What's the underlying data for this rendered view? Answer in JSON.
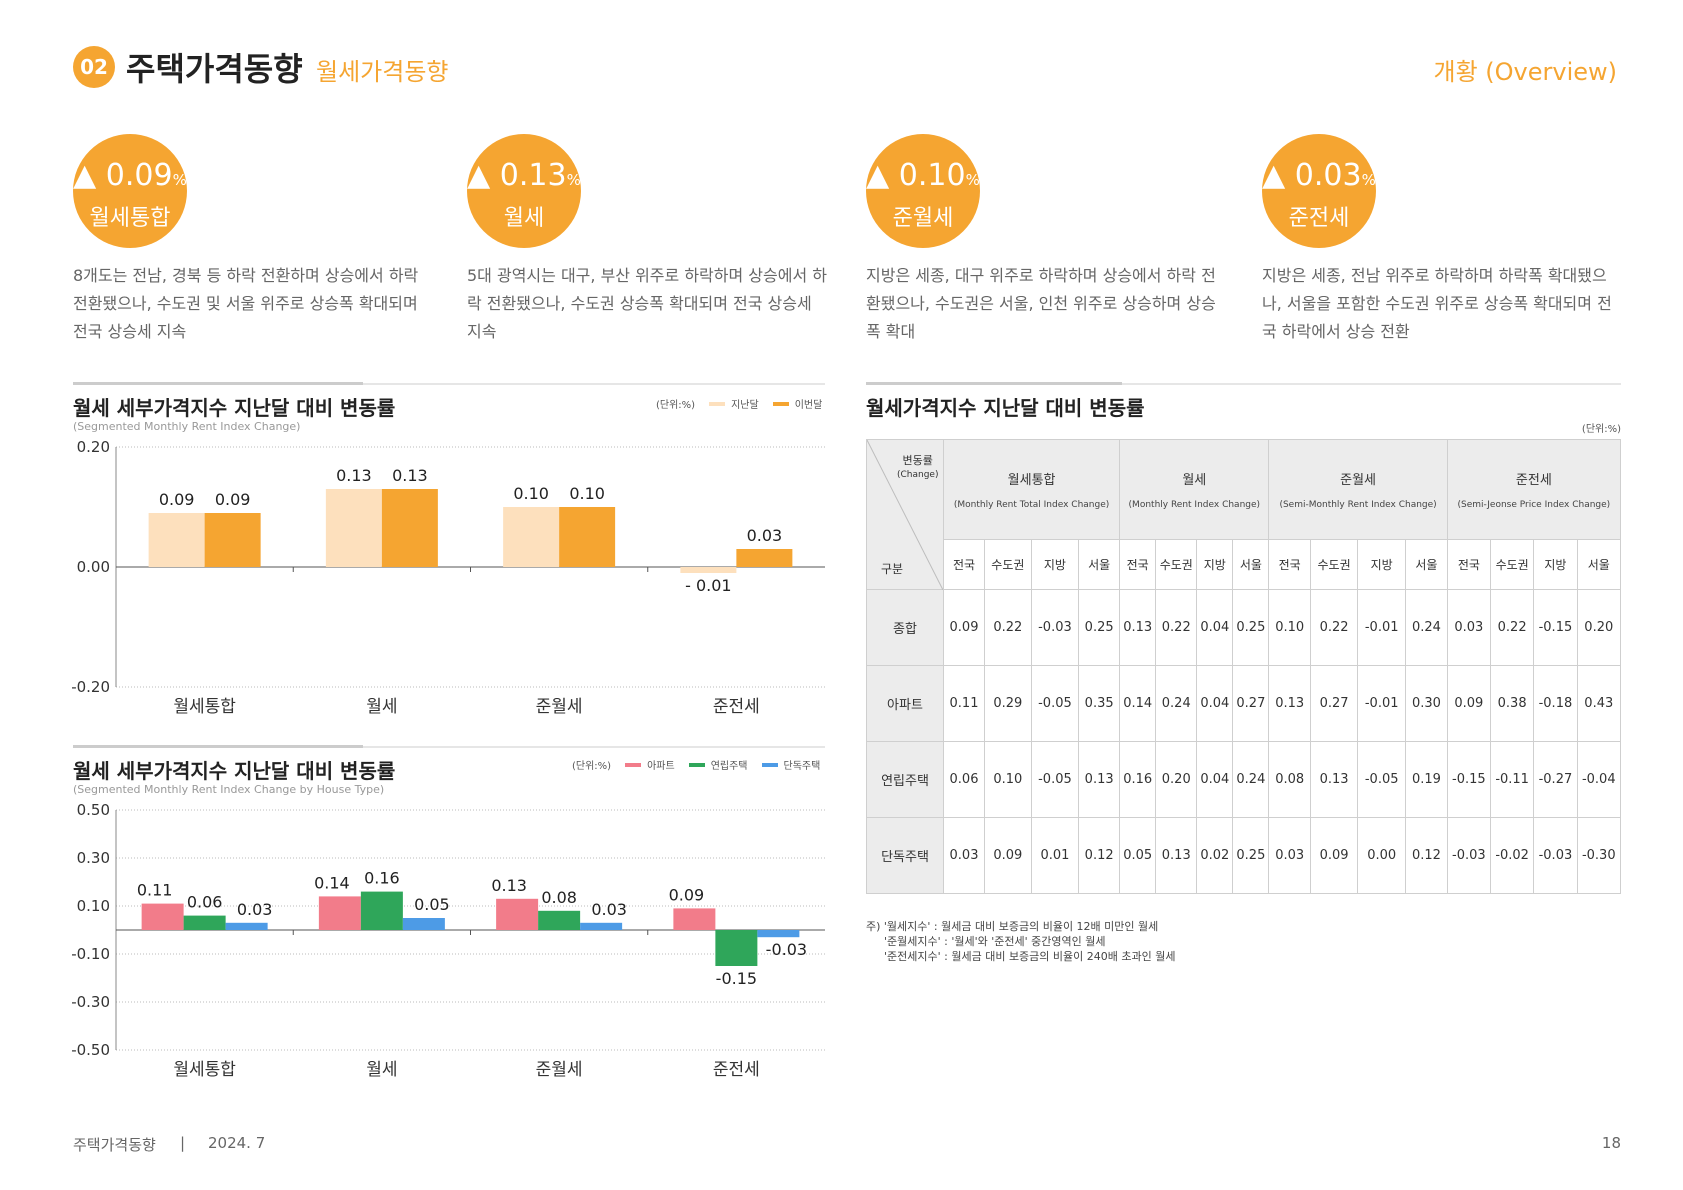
{
  "header": {
    "badge": "02",
    "title": "주택가격동향",
    "subtitle": "월세가격동향",
    "right": "개황 (Overview)"
  },
  "summary": [
    {
      "arrow": "▲",
      "value": "0.09",
      "unit": "%",
      "label": "월세통합",
      "desc": "8개도는 전남, 경북 등 하락 전환하며 상승에서 하락 전환됐으나, 수도권 및 서울 위주로 상승폭 확대되며 전국 상승세 지속"
    },
    {
      "arrow": "▲",
      "value": "0.13",
      "unit": "%",
      "label": "월세",
      "desc": "5대 광역시는 대구, 부산 위주로 하락하며 상승에서 하락 전환됐으나, 수도권 상승폭 확대되며 전국 상승세 지속"
    },
    {
      "arrow": "▲",
      "value": "0.10",
      "unit": "%",
      "label": "준월세",
      "desc": "지방은 세종, 대구 위주로 하락하며 상승에서 하락 전환됐으나, 수도권은 서울, 인천 위주로 상승하며 상승폭 확대"
    },
    {
      "arrow": "▲",
      "value": "0.03",
      "unit": "%",
      "label": "준전세",
      "desc": "지방은 세종, 전남 위주로 하락하며 하락폭 확대됐으나, 서울을 포함한 수도권 위주로 상승폭 확대되며 전국 하락에서 상승 전환"
    }
  ],
  "chart1": {
    "title": "월세 세부가격지수 지난달 대비 변동률",
    "subtitle": "(Segmented Monthly Rent Index Change)",
    "unit": "(단위:%)",
    "legend": [
      "지난달",
      "이번달"
    ],
    "colors": [
      "#fde0bd",
      "#f5a531"
    ]
  },
  "chart2": {
    "title": "월세 세부가격지수 지난달 대비 변동률",
    "subtitle": "(Segmented Monthly Rent Index Change by House Type)",
    "unit": "(단위:%)",
    "legend": [
      "아파트",
      "연립주택",
      "단독주택"
    ],
    "colors": [
      "#f27c8a",
      "#2fa65a",
      "#4d9be6"
    ]
  },
  "chart_data": [
    {
      "type": "bar",
      "categories": [
        "월세통합",
        "월세",
        "준월세",
        "준전세"
      ],
      "series": [
        {
          "name": "지난달",
          "values": [
            0.09,
            0.13,
            0.1,
            -0.01
          ]
        },
        {
          "name": "이번달",
          "values": [
            0.09,
            0.13,
            0.1,
            0.03
          ]
        }
      ],
      "value_labels": [
        [
          "0.09",
          "0.13",
          "0.10",
          "- 0.01"
        ],
        [
          "0.09",
          "0.13",
          "0.10",
          "0.03"
        ]
      ],
      "yticks": [
        "0.20",
        "0.00",
        "-0.20"
      ],
      "ylim": [
        -0.2,
        0.2
      ]
    },
    {
      "type": "bar",
      "categories": [
        "월세통합",
        "월세",
        "준월세",
        "준전세"
      ],
      "series": [
        {
          "name": "아파트",
          "values": [
            0.11,
            0.14,
            0.13,
            0.09
          ]
        },
        {
          "name": "연립주택",
          "values": [
            0.06,
            0.16,
            0.08,
            -0.15
          ]
        },
        {
          "name": "단독주택",
          "values": [
            0.03,
            0.05,
            0.03,
            -0.03
          ]
        }
      ],
      "value_labels": [
        [
          "0.11",
          "0.14",
          "0.13",
          "0.09"
        ],
        [
          "0.06",
          "0.16",
          "0.08",
          "-0.15"
        ],
        [
          "0.03",
          "0.05",
          "0.03",
          "-0.03"
        ]
      ],
      "yticks": [
        "0.50",
        "0.30",
        "0.10",
        "-0.10",
        "-0.30",
        "-0.50"
      ],
      "ylim": [
        -0.5,
        0.5
      ]
    }
  ],
  "table": {
    "title": "월세가격지수 지난달 대비 변동률",
    "unit": "(단위:%)",
    "corner_top": "변동률",
    "corner_top_en": "(Change)",
    "corner_bottom": "구분",
    "groups": [
      {
        "name": "월세통합",
        "en": "(Monthly Rent Total Index Change)"
      },
      {
        "name": "월세",
        "en": "(Monthly Rent Index Change)"
      },
      {
        "name": "준월세",
        "en": "(Semi-Monthly Rent Index Change)"
      },
      {
        "name": "준전세",
        "en": "(Semi-Jeonse Price Index Change)"
      }
    ],
    "subcols": [
      "전국",
      "수도권",
      "지방",
      "서울"
    ],
    "rows": [
      {
        "label": "종합",
        "values": [
          "0.09",
          "0.22",
          "-0.03",
          "0.25",
          "0.13",
          "0.22",
          "0.04",
          "0.25",
          "0.10",
          "0.22",
          "-0.01",
          "0.24",
          "0.03",
          "0.22",
          "-0.15",
          "0.20"
        ]
      },
      {
        "label": "아파트",
        "values": [
          "0.11",
          "0.29",
          "-0.05",
          "0.35",
          "0.14",
          "0.24",
          "0.04",
          "0.27",
          "0.13",
          "0.27",
          "-0.01",
          "0.30",
          "0.09",
          "0.38",
          "-0.18",
          "0.43"
        ]
      },
      {
        "label": "연립주택",
        "values": [
          "0.06",
          "0.10",
          "-0.05",
          "0.13",
          "0.16",
          "0.20",
          "0.04",
          "0.24",
          "0.08",
          "0.13",
          "-0.05",
          "0.19",
          "-0.15",
          "-0.11",
          "-0.27",
          "-0.04"
        ]
      },
      {
        "label": "단독주택",
        "values": [
          "0.03",
          "0.09",
          "0.01",
          "0.12",
          "0.05",
          "0.13",
          "0.02",
          "0.25",
          "0.03",
          "0.09",
          "0.00",
          "0.12",
          "-0.03",
          "-0.02",
          "-0.03",
          "-0.30"
        ]
      }
    ],
    "notes": [
      "주) '월세지수' : 월세금 대비 보증금의 비율이 12배 미만인 월세",
      "'준월세지수' : '월세'와 '준전세' 중간영역인 월세",
      "'준전세지수' : 월세금 대비 보증금의 비율이 240배 초과인 월세"
    ]
  },
  "footer": {
    "left": "주택가격동향",
    "sep": "|",
    "date": "2024. 7",
    "page": "18"
  }
}
